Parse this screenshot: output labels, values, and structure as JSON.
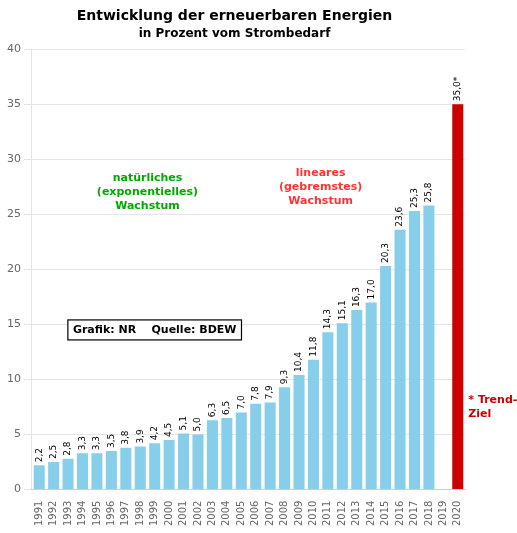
{
  "chart_data": {
    "type": "bar",
    "title": "Entwicklung der erneuerbaren Energien",
    "subtitle": "in Prozent vom Strombedarf",
    "categories": [
      "1991",
      "1992",
      "1993",
      "1994",
      "1995",
      "1996",
      "1997",
      "1998",
      "1999",
      "2000",
      "2001",
      "2002",
      "2003",
      "2004",
      "2005",
      "2006",
      "2007",
      "2008",
      "2009",
      "2010",
      "2011",
      "2012",
      "2013",
      "2014",
      "2015",
      "2016",
      "2017",
      "2018",
      "2019",
      "2020"
    ],
    "values": [
      2.2,
      2.5,
      2.8,
      3.3,
      3.3,
      3.5,
      3.8,
      3.9,
      4.2,
      4.5,
      5.1,
      5.0,
      6.3,
      6.5,
      7.0,
      7.8,
      7.9,
      9.3,
      10.4,
      11.8,
      14.3,
      15.1,
      16.3,
      17.0,
      20.3,
      23.6,
      25.3,
      25.8,
      0,
      35.0
    ],
    "value_labels": [
      "2,2",
      "2,5",
      "2,8",
      "3,3",
      "3,3",
      "3,5",
      "3,8",
      "3,9",
      "4,2",
      "4,5",
      "5,1",
      "5,0",
      "6,3",
      "6,5",
      "7,0",
      "7,8",
      "7,9",
      "9,3",
      "10,4",
      "11,8",
      "14,3",
      "15,1",
      "16,3",
      "17,0",
      "20,3",
      "23,6",
      "25,3",
      "25,8",
      null,
      "35,0*"
    ],
    "data_labels": true,
    "colors": [
      "#87CEEB",
      "#87CEEB",
      "#87CEEB",
      "#87CEEB",
      "#87CEEB",
      "#87CEEB",
      "#87CEEB",
      "#87CEEB",
      "#87CEEB",
      "#87CEEB",
      "#87CEEB",
      "#87CEEB",
      "#87CEEB",
      "#87CEEB",
      "#87CEEB",
      "#87CEEB",
      "#87CEEB",
      "#87CEEB",
      "#87CEEB",
      "#87CEEB",
      "#87CEEB",
      "#87CEEB",
      "#87CEEB",
      "#87CEEB",
      "#87CEEB",
      "#87CEEB",
      "#87CEEB",
      "#87CEEB",
      "#87CEEB",
      "#CC0000"
    ],
    "ylim": [
      0,
      40
    ],
    "yticks": [
      0,
      5,
      10,
      15,
      20,
      25,
      30,
      35,
      40
    ],
    "grid": true,
    "annotations": [
      {
        "text": "natürliches\n(exponentielles)\nWachstum",
        "color": "#00aa00"
      },
      {
        "text": "lineares\n(gebremstes)\nWachstum",
        "color": "#ff3333"
      },
      {
        "text": "* Trend-\nZiel",
        "color": "#CC0000"
      },
      {
        "text": "Grafik: NR    Quelle: BDEW",
        "color": "#000000"
      }
    ]
  }
}
